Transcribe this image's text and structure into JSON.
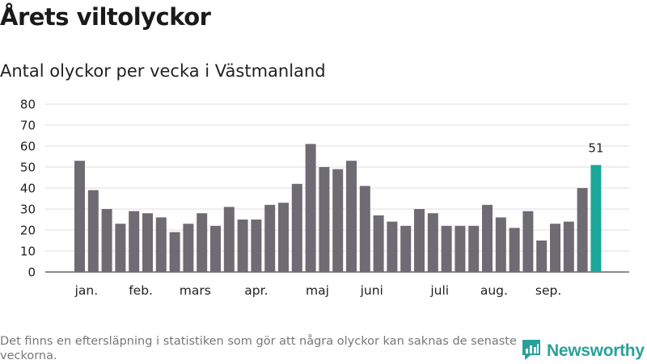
{
  "header": {
    "title": "Årets viltolyckor",
    "subtitle": "Antal olyckor per vecka i Västmanland"
  },
  "footer": {
    "note": "Det finns en eftersläpning i statistiken som gör att några olyckor kan saknas de senaste veckorna.",
    "brand": "Newsworthy"
  },
  "colors": {
    "bar": "#6e6c72",
    "highlight": "#1ba89b",
    "grid": "#dddddd",
    "brand": "#2aa198"
  },
  "chart_data": {
    "type": "bar",
    "title": "Årets viltolyckor",
    "subtitle": "Antal olyckor per vecka i Västmanland",
    "xlabel": "",
    "ylabel": "",
    "ylim": [
      0,
      80
    ],
    "yticks": [
      0,
      10,
      20,
      30,
      40,
      50,
      60,
      70,
      80
    ],
    "grid": true,
    "values": [
      53,
      39,
      30,
      23,
      29,
      28,
      26,
      19,
      23,
      28,
      22,
      31,
      25,
      25,
      32,
      33,
      42,
      61,
      50,
      49,
      53,
      41,
      27,
      24,
      22,
      30,
      28,
      22,
      22,
      22,
      32,
      26,
      21,
      29,
      15,
      23,
      24,
      40,
      51
    ],
    "highlight_index": 38,
    "highlight_label": "51",
    "month_labels": [
      {
        "label": "jan.",
        "index": 0.5
      },
      {
        "label": "feb.",
        "index": 4.5
      },
      {
        "label": "mars",
        "index": 8.5
      },
      {
        "label": "apr.",
        "index": 13
      },
      {
        "label": "maj",
        "index": 17.5
      },
      {
        "label": "juni",
        "index": 21.5
      },
      {
        "label": "juli",
        "index": 26.5
      },
      {
        "label": "aug.",
        "index": 30.5
      },
      {
        "label": "sep.",
        "index": 34.5
      }
    ]
  }
}
